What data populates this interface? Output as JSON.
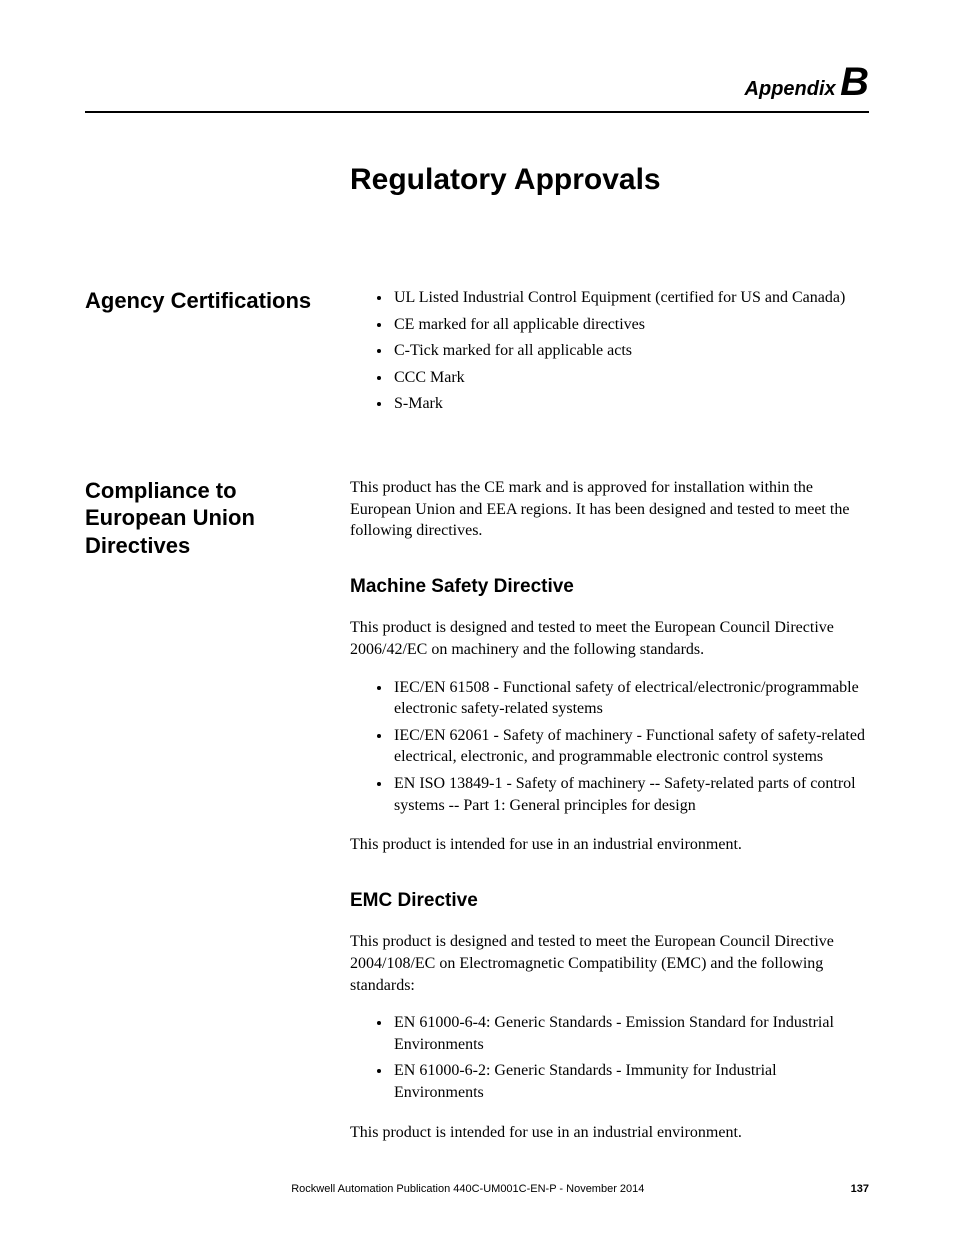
{
  "header": {
    "appendix_word": "Appendix",
    "appendix_letter": "B"
  },
  "chapter_title": "Regulatory Approvals",
  "sections": {
    "agency": {
      "heading": "Agency Certifications",
      "bullets": [
        "UL Listed Industrial Control Equipment (certified for US and Canada)",
        "CE marked for all applicable directives",
        "C-Tick marked for all applicable acts",
        "CCC Mark",
        "S-Mark"
      ]
    },
    "compliance": {
      "heading": "Compliance to European Union Directives",
      "intro": "This product has the CE mark and is approved for installation within the European Union and EEA regions. It has been designed and tested to meet the following directives.",
      "machine": {
        "title": "Machine Safety Directive",
        "para1": "This product is designed and tested to meet the European Council Directive 2006/42/EC on machinery and the following standards.",
        "bullets": [
          "IEC/EN 61508 - Functional safety of electrical/electronic/programmable electronic safety-related systems",
          "IEC/EN 62061 - Safety of machinery - Functional safety of safety-related electrical, electronic, and programmable electronic control systems",
          "EN ISO 13849-1 - Safety of machinery -- Safety-related parts of control systems -- Part 1: General principles for design"
        ],
        "para2": "This product is intended for use in an industrial environment."
      },
      "emc": {
        "title": "EMC Directive",
        "para1": "This product is designed and tested to meet the European Council Directive 2004/108/EC on Electromagnetic Compatibility (EMC) and the following standards:",
        "bullets": [
          "EN 61000-6-4: Generic Standards - Emission Standard for Industrial Environments",
          "EN 61000-6-2: Generic Standards - Immunity for Industrial Environments"
        ],
        "para2": "This product is intended for use in an industrial environment."
      }
    }
  },
  "footer": {
    "publication": "Rockwell Automation Publication 440C-UM001C-EN-P - November 2014",
    "page_number": "137"
  }
}
